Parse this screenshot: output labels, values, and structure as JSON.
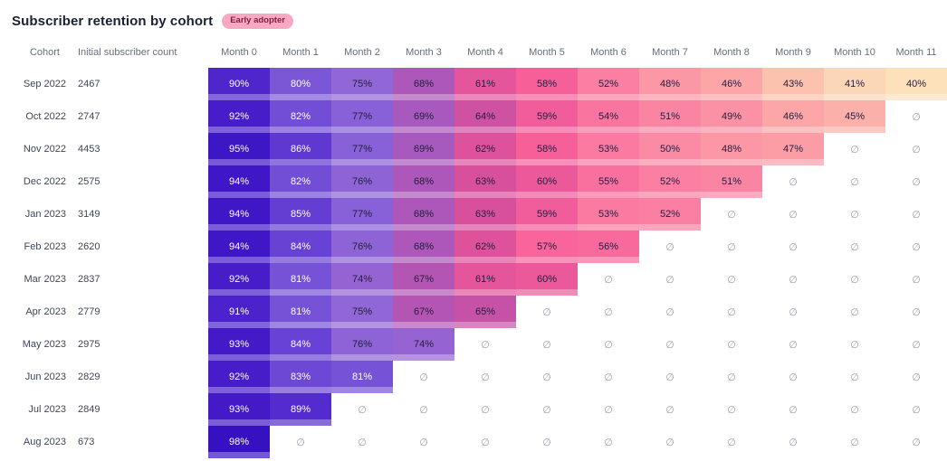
{
  "table": {
    "cohort_header": "Cohort",
    "count_header": "Initial subscriber count",
    "empty_symbol": "∅"
  },
  "colors": {
    "badge_bg": "#f9a8c3",
    "badge_text": "#7e2040",
    "cell_text_light": "#ffffff",
    "cell_text_dark": "#241d3f",
    "empty_symbol_color": "#98a0ac",
    "header_text": "#666e7e",
    "row_label_text": "#3e4656",
    "title_text": "#1b2033",
    "heatmap_high": "#2f0ec0",
    "heatmap_mid": "#f75f99",
    "heatmap_low": "#fce1bb"
  },
  "chart_data": {
    "type": "heatmap",
    "title": "Subscriber retention by cohort",
    "badge": "Early adopter",
    "xlabel": "",
    "ylabel": "",
    "x_labels": [
      "Month 0",
      "Month 1",
      "Month 2",
      "Month 3",
      "Month 4",
      "Month 5",
      "Month 6",
      "Month 7",
      "Month 8",
      "Month 9",
      "Month 10",
      "Month 11"
    ],
    "y_labels": [
      "Sep 2022",
      "Oct 2022",
      "Nov 2022",
      "Dec 2022",
      "Jan 2023",
      "Feb 2023",
      "Mar 2023",
      "Apr 2023",
      "May 2023",
      "Jun 2023",
      "Jul 2023",
      "Aug 2023"
    ],
    "initial_counts": [
      2467,
      2747,
      4453,
      2575,
      3149,
      2620,
      2837,
      2779,
      2975,
      2829,
      2849,
      673
    ],
    "values_pct": [
      [
        90,
        80,
        75,
        68,
        61,
        58,
        52,
        48,
        46,
        43,
        41,
        40
      ],
      [
        92,
        82,
        77,
        69,
        64,
        59,
        54,
        51,
        49,
        46,
        45,
        null
      ],
      [
        95,
        86,
        77,
        69,
        62,
        58,
        53,
        50,
        48,
        47,
        null,
        null
      ],
      [
        94,
        82,
        76,
        68,
        63,
        60,
        55,
        52,
        51,
        null,
        null,
        null
      ],
      [
        94,
        85,
        77,
        68,
        63,
        59,
        53,
        52,
        null,
        null,
        null,
        null
      ],
      [
        94,
        84,
        76,
        68,
        62,
        57,
        56,
        null,
        null,
        null,
        null,
        null
      ],
      [
        92,
        81,
        74,
        67,
        61,
        60,
        null,
        null,
        null,
        null,
        null,
        null
      ],
      [
        91,
        81,
        75,
        67,
        65,
        null,
        null,
        null,
        null,
        null,
        null,
        null
      ],
      [
        93,
        84,
        76,
        74,
        null,
        null,
        null,
        null,
        null,
        null,
        null,
        null
      ],
      [
        92,
        83,
        81,
        null,
        null,
        null,
        null,
        null,
        null,
        null,
        null,
        null
      ],
      [
        93,
        89,
        null,
        null,
        null,
        null,
        null,
        null,
        null,
        null,
        null,
        null
      ],
      [
        98,
        null,
        null,
        null,
        null,
        null,
        null,
        null,
        null,
        null,
        null,
        null
      ]
    ],
    "value_suffix": "%",
    "colormap_stops": [
      [
        100,
        "#2f0ec0"
      ],
      [
        93,
        "#4319c8"
      ],
      [
        86,
        "#5f38d2"
      ],
      [
        80,
        "#7b57d8"
      ],
      [
        75,
        "#9166d6"
      ],
      [
        68,
        "#ac57b9"
      ],
      [
        63,
        "#d84f9c"
      ],
      [
        58,
        "#f75f99"
      ],
      [
        52,
        "#fa7fa2"
      ],
      [
        47,
        "#fc9da6"
      ],
      [
        43,
        "#fcc2ae"
      ],
      [
        40,
        "#fce1bb"
      ]
    ],
    "light_text_threshold": 80,
    "legend": "none",
    "grid": "off"
  }
}
